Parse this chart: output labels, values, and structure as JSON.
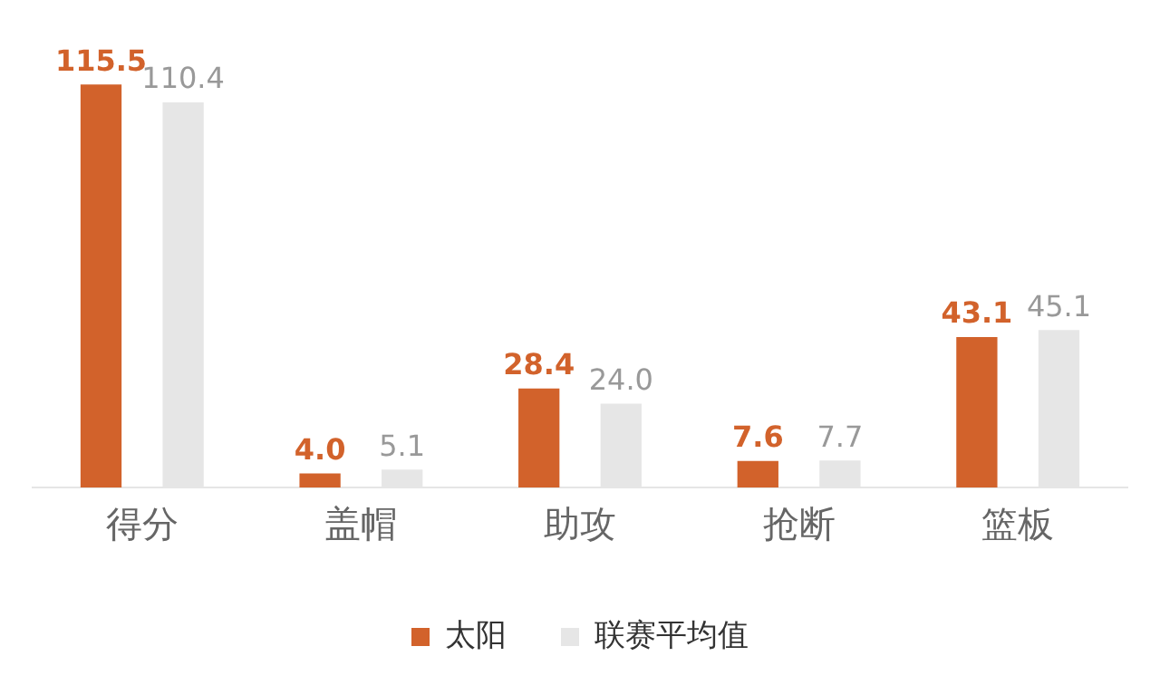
{
  "chart_data": {
    "type": "bar",
    "categories": [
      "得分",
      "盖帽",
      "助攻",
      "抢断",
      "篮板"
    ],
    "series": [
      {
        "name": "太阳",
        "color": "#d2622b",
        "values": [
          115.5,
          4.0,
          28.4,
          7.6,
          43.1
        ],
        "value_labels": [
          "115.5",
          "4.0",
          "28.4",
          "7.6",
          "43.1"
        ]
      },
      {
        "name": "联赛平均值",
        "color": "#e6e6e6",
        "values": [
          110.4,
          5.1,
          24.0,
          7.7,
          45.1
        ],
        "value_labels": [
          "110.4",
          "5.1",
          "24.0",
          "7.7",
          "45.1"
        ]
      }
    ],
    "legend": "bottom",
    "grid": false
  }
}
